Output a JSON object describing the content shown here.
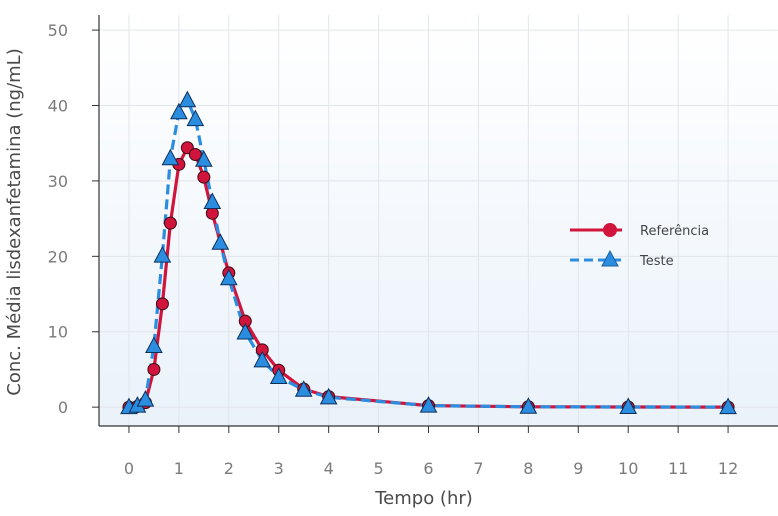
{
  "chart_data": {
    "type": "line",
    "title": "",
    "xlabel": "Tempo (hr)",
    "ylabel": "Conc. Média lisdexanfetamina (ng/mL)",
    "xlim": [
      -0.6,
      13
    ],
    "ylim": [
      -2.5,
      52
    ],
    "x_ticks": [
      0,
      1,
      2,
      3,
      4,
      5,
      6,
      7,
      8,
      9,
      10,
      11,
      12
    ],
    "y_ticks": [
      0,
      10,
      20,
      30,
      40,
      50
    ],
    "grid": true,
    "legend_position": "right",
    "series": [
      {
        "name": "Referência",
        "color": "#d0143c",
        "line_style": "solid",
        "marker": "circle",
        "x": [
          0,
          0.17,
          0.33,
          0.5,
          0.67,
          0.83,
          1.0,
          1.17,
          1.33,
          1.5,
          1.67,
          2.0,
          2.33,
          2.67,
          3.0,
          3.5,
          4.0,
          6.0,
          8.0,
          10.0,
          12.0
        ],
        "y": [
          0,
          0.1,
          0.6,
          5.0,
          13.7,
          24.4,
          32.2,
          34.4,
          33.5,
          30.5,
          25.7,
          17.8,
          11.4,
          7.6,
          4.9,
          2.4,
          1.4,
          0.2,
          0.05,
          0.02,
          0.01
        ]
      },
      {
        "name": "Teste",
        "color": "#2b8de0",
        "line_style": "dashed",
        "marker": "triangle",
        "x": [
          0,
          0.17,
          0.33,
          0.5,
          0.67,
          0.83,
          1.0,
          1.17,
          1.33,
          1.5,
          1.67,
          1.83,
          2.0,
          2.33,
          2.67,
          3.0,
          3.5,
          4.0,
          6.0,
          8.0,
          10.0,
          12.0
        ],
        "y": [
          0,
          0.2,
          1.0,
          8.1,
          20.1,
          33.0,
          39.1,
          40.7,
          38.2,
          32.8,
          27.2,
          21.8,
          17.1,
          9.9,
          6.2,
          4.0,
          2.3,
          1.3,
          0.2,
          0.05,
          0.02,
          0.01
        ]
      }
    ]
  }
}
